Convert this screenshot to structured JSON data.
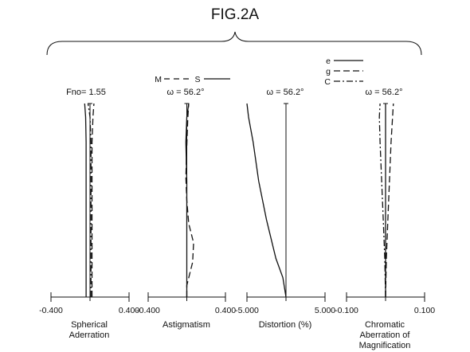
{
  "figure": {
    "title": "FIG.2A"
  },
  "legend_ms": {
    "m_label": "M",
    "s_label": "S"
  },
  "legend_colors": {
    "e_label": "e",
    "g_label": "g",
    "c_label": "C"
  },
  "chart_data": [
    {
      "type": "line",
      "id": "spherical",
      "xlabel_line1": "Spherical",
      "xlabel_line2": "Aderration",
      "ylabel": "Fno= 1.55",
      "tick_labels": [
        "-0.400",
        "0.400"
      ],
      "xlim": [
        -0.4,
        0.4
      ],
      "ylim": [
        0,
        1
      ],
      "series": [
        {
          "name": "e",
          "style": "solid",
          "points": [
            [
              -0.04,
              0
            ],
            [
              -0.04,
              0.2
            ],
            [
              -0.04,
              0.4
            ],
            [
              -0.04,
              0.6
            ],
            [
              -0.04,
              0.8
            ],
            [
              -0.045,
              0.93
            ],
            [
              -0.055,
              1.0
            ]
          ]
        },
        {
          "name": "g",
          "style": "dashed",
          "points": [
            [
              0.02,
              0
            ],
            [
              0.02,
              0.2
            ],
            [
              0.02,
              0.4
            ],
            [
              0.02,
              0.6
            ],
            [
              0.02,
              0.8
            ],
            [
              0.03,
              0.93
            ],
            [
              0.04,
              1.0
            ]
          ]
        },
        {
          "name": "C",
          "style": "dashdot",
          "points": [
            [
              0.01,
              0
            ],
            [
              0.01,
              0.2
            ],
            [
              0.01,
              0.4
            ],
            [
              0.01,
              0.6
            ],
            [
              0.01,
              0.8
            ],
            [
              0.0,
              0.93
            ],
            [
              -0.02,
              1.0
            ]
          ]
        }
      ]
    },
    {
      "type": "line",
      "id": "astigmatism",
      "xlabel_line1": "Astigmatism",
      "xlabel_line2": "",
      "ylabel": "ω = 56.2°",
      "tick_labels": [
        "-0.400",
        "0.400"
      ],
      "xlim": [
        -0.4,
        0.4
      ],
      "ylim": [
        0,
        1
      ],
      "series": [
        {
          "name": "S",
          "style": "solid",
          "points": [
            [
              0.0,
              0
            ],
            [
              0.0,
              0.2
            ],
            [
              0.0,
              0.4
            ],
            [
              0.0,
              0.6
            ],
            [
              -0.01,
              0.8
            ],
            [
              0.0,
              0.93
            ],
            [
              0.02,
              1.0
            ]
          ]
        },
        {
          "name": "M",
          "style": "dashed",
          "points": [
            [
              0.0,
              0
            ],
            [
              0.0,
              0.06
            ],
            [
              0.06,
              0.18
            ],
            [
              0.07,
              0.28
            ],
            [
              0.02,
              0.38
            ],
            [
              0.0,
              0.5
            ],
            [
              -0.01,
              0.62
            ],
            [
              0.0,
              0.78
            ],
            [
              0.01,
              0.92
            ],
            [
              0.02,
              1.0
            ]
          ]
        }
      ]
    },
    {
      "type": "line",
      "id": "distortion",
      "xlabel_line1": "Distortion (%)",
      "xlabel_line2": "",
      "ylabel": "ω =  56.2°",
      "tick_labels": [
        "-5.000",
        "5.000"
      ],
      "xlim": [
        -5,
        5
      ],
      "ylim": [
        0,
        1
      ],
      "series": [
        {
          "name": "distortion",
          "style": "solid",
          "points": [
            [
              0,
              0
            ],
            [
              -0.4,
              0.1
            ],
            [
              -1.3,
              0.2
            ],
            [
              -2.5,
              0.4
            ],
            [
              -3.5,
              0.6
            ],
            [
              -4.2,
              0.8
            ],
            [
              -4.8,
              0.93
            ],
            [
              -5.0,
              1.0
            ]
          ]
        }
      ]
    },
    {
      "type": "line",
      "id": "chromatic",
      "xlabel_line1": "Chromatic",
      "xlabel_line2": "Aberration of",
      "xlabel_line3": "Magnification",
      "ylabel": "ω =  56.2°",
      "tick_labels": [
        "-0.100",
        "0.100"
      ],
      "xlim": [
        -0.1,
        0.1
      ],
      "ylim": [
        0,
        1
      ],
      "series": [
        {
          "name": "e",
          "style": "solid",
          "points": [
            [
              0,
              0
            ],
            [
              0,
              1
            ]
          ]
        },
        {
          "name": "g",
          "style": "dashed",
          "points": [
            [
              0,
              0
            ],
            [
              0.002,
              0.2
            ],
            [
              0.006,
              0.4
            ],
            [
              0.01,
              0.6
            ],
            [
              0.014,
              0.8
            ],
            [
              0.018,
              0.93
            ],
            [
              0.02,
              1.0
            ]
          ]
        },
        {
          "name": "C",
          "style": "dashdot",
          "points": [
            [
              0,
              0
            ],
            [
              -0.002,
              0.2
            ],
            [
              -0.006,
              0.4
            ],
            [
              -0.01,
              0.6
            ],
            [
              -0.014,
              0.8
            ],
            [
              -0.016,
              0.93
            ],
            [
              -0.014,
              1.0
            ]
          ]
        }
      ]
    }
  ]
}
